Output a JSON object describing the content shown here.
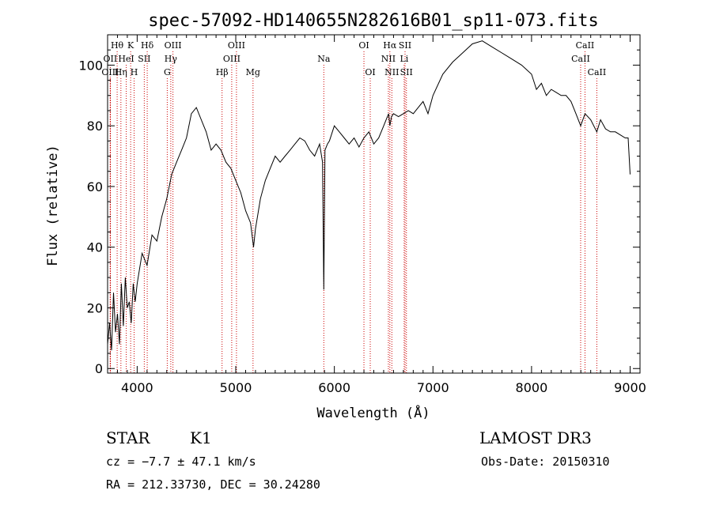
{
  "chart_data": {
    "type": "line",
    "title": "spec-57092-HD140655N282616B01_sp11-073.fits",
    "xlabel": "Wavelength (Å)",
    "ylabel": "Flux (relative)",
    "xlim": [
      3700,
      9100
    ],
    "ylim": [
      -1.5,
      110
    ],
    "x_ticks": [
      4000,
      5000,
      6000,
      7000,
      8000,
      9000
    ],
    "y_ticks": [
      0,
      20,
      40,
      60,
      80,
      100
    ],
    "grid": false,
    "line_color": "#000000",
    "marker_color": "#cc0000",
    "series": [
      {
        "x": [
          3700,
          3720,
          3740,
          3760,
          3780,
          3800,
          3820,
          3840,
          3860,
          3880,
          3900,
          3920,
          3940,
          3960,
          3980,
          4000,
          4050,
          4100,
          4150,
          4200,
          4250,
          4300,
          4350,
          4400,
          4450,
          4500,
          4550,
          4600,
          4650,
          4700,
          4750,
          4800,
          4850,
          4900,
          4950,
          5000,
          5050,
          5100,
          5150,
          5180,
          5200,
          5250,
          5300,
          5350,
          5400,
          5450,
          5500,
          5550,
          5600,
          5650,
          5700,
          5750,
          5800,
          5850,
          5880,
          5893,
          5905,
          5930,
          5950,
          6000,
          6050,
          6100,
          6150,
          6200,
          6250,
          6300,
          6350,
          6400,
          6450,
          6500,
          6550,
          6563,
          6580,
          6600,
          6650,
          6700,
          6750,
          6800,
          6850,
          6900,
          6950,
          7000,
          7100,
          7200,
          7300,
          7400,
          7500,
          7600,
          7700,
          7800,
          7900,
          8000,
          8050,
          8100,
          8150,
          8200,
          8250,
          8300,
          8350,
          8400,
          8450,
          8498,
          8542,
          8600,
          8662,
          8700,
          8750,
          8800,
          8850,
          8900,
          8950,
          8980,
          9000
        ],
        "y": [
          8,
          15,
          6,
          25,
          12,
          18,
          8,
          28,
          14,
          30,
          20,
          22,
          15,
          28,
          22,
          28,
          38,
          34,
          44,
          42,
          50,
          56,
          64,
          68,
          72,
          76,
          84,
          86,
          82,
          78,
          72,
          74,
          72,
          68,
          66,
          62,
          58,
          52,
          48,
          40,
          46,
          56,
          62,
          66,
          70,
          68,
          70,
          72,
          74,
          76,
          75,
          72,
          70,
          74,
          68,
          26,
          72,
          74,
          75,
          80,
          78,
          76,
          74,
          76,
          73,
          76,
          78,
          74,
          76,
          80,
          84,
          80,
          83,
          84,
          83,
          84,
          85,
          84,
          86,
          88,
          84,
          90,
          97,
          101,
          104,
          107,
          108,
          106,
          104,
          102,
          100,
          97,
          92,
          94,
          90,
          92,
          91,
          90,
          90,
          88,
          84,
          80,
          84,
          82,
          78,
          82,
          79,
          78,
          78,
          77,
          76,
          76,
          64
        ]
      }
    ],
    "spectral_lines": [
      {
        "label": "Hθ",
        "x": 3797,
        "row": 0
      },
      {
        "label": "OII",
        "x": 3727,
        "row": 1
      },
      {
        "label": "OIII",
        "x": 3727,
        "row": 2
      },
      {
        "label": "K",
        "x": 3934,
        "row": 0
      },
      {
        "label": "HeI",
        "x": 3889,
        "row": 1
      },
      {
        "label": "Hη",
        "x": 3835,
        "row": 2
      },
      {
        "label": "Hδ",
        "x": 4102,
        "row": 0
      },
      {
        "label": "SII",
        "x": 4072,
        "row": 1
      },
      {
        "label": "H",
        "x": 3969,
        "row": 2
      },
      {
        "label": "OIII",
        "x": 4363,
        "row": 0
      },
      {
        "label": "Hγ",
        "x": 4341,
        "row": 1
      },
      {
        "label": "G",
        "x": 4305,
        "row": 2
      },
      {
        "label": "Hβ",
        "x": 4861,
        "row": 2
      },
      {
        "label": "OIII",
        "x": 5007,
        "row": 0
      },
      {
        "label": "OIII",
        "x": 4959,
        "row": 1
      },
      {
        "label": "Mg",
        "x": 5175,
        "row": 2
      },
      {
        "label": "Na",
        "x": 5893,
        "row": 1
      },
      {
        "label": "OI",
        "x": 6300,
        "row": 0
      },
      {
        "label": "OI",
        "x": 6364,
        "row": 2
      },
      {
        "label": "Hα",
        "x": 6563,
        "row": 0
      },
      {
        "label": "NII",
        "x": 6548,
        "row": 1
      },
      {
        "label": "NII",
        "x": 6583,
        "row": 2
      },
      {
        "label": "SII",
        "x": 6717,
        "row": 0
      },
      {
        "label": "Li",
        "x": 6708,
        "row": 1
      },
      {
        "label": "SII",
        "x": 6731,
        "row": 2
      },
      {
        "label": "CaII",
        "x": 8542,
        "row": 0
      },
      {
        "label": "CaII",
        "x": 8498,
        "row": 1
      },
      {
        "label": "CaII",
        "x": 8662,
        "row": 2
      }
    ]
  },
  "info": {
    "class": "STAR",
    "subclass": "K1",
    "survey": "LAMOST DR3",
    "cz": "cz = −7.7 ± 47.1 km/s",
    "obs_date": "Obs-Date: 20150310",
    "coords": "RA = 212.33730, DEC =  30.24280"
  }
}
